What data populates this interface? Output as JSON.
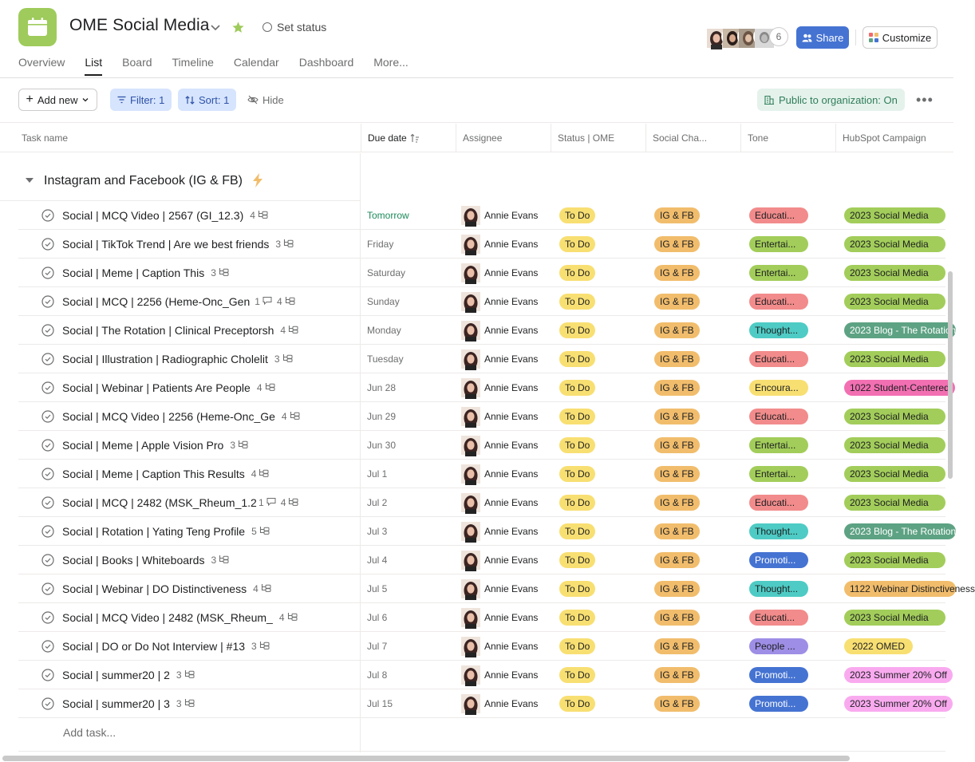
{
  "project": {
    "title": "OME Social Media",
    "set_status": "Set status",
    "accent": "#9ecb5b"
  },
  "tabs": [
    {
      "label": "Overview",
      "active": false
    },
    {
      "label": "List",
      "active": true
    },
    {
      "label": "Board",
      "active": false
    },
    {
      "label": "Timeline",
      "active": false
    },
    {
      "label": "Calendar",
      "active": false
    },
    {
      "label": "Dashboard",
      "active": false
    },
    {
      "label": "More...",
      "active": false
    }
  ],
  "members": {
    "extra_count": "6"
  },
  "header_actions": {
    "share": "Share",
    "customize": "Customize"
  },
  "toolbar": {
    "add_new": "Add new",
    "filter": "Filter: 1",
    "sort": "Sort: 1",
    "hide": "Hide",
    "public": "Public to organization: On"
  },
  "columns": {
    "task_name": "Task name",
    "due_date": "Due date",
    "assignee": "Assignee",
    "status": "Status | OME",
    "social": "Social Cha...",
    "tone": "Tone",
    "hubspot": "HubSpot Campaign"
  },
  "section": {
    "title": "Instagram and Facebook (IG & FB)"
  },
  "tone_colors": {
    "Educati...": "#f28b8b",
    "Entertai...": "#a2cd5a",
    "Thought...": "#4ecbc4",
    "Encoura...": "#f8df72",
    "Promoti...": "#4573d2",
    "People ...": "#9e8ee6"
  },
  "hub_colors": {
    "2023 Social Media": "#a2cd5a",
    "2023 Blog - The Rotation": "#5da283",
    "1022 Student-Centered": "#f26fb2",
    "1122 Webinar Distinctiveness": "#f1bd6c",
    "2022 OMED": "#f8df72",
    "2023 Summer 20% Off": "#f9aaef"
  },
  "tasks": [
    {
      "name": "Social | MCQ Video | 2567 (GI_12.3)",
      "comments": "",
      "subtasks": "4",
      "due": "Tomorrow",
      "assignee": "Annie Evans",
      "status": "To Do",
      "social": "IG & FB",
      "tone": "Educati...",
      "hubspot": "2023 Social Media"
    },
    {
      "name": "Social | TikTok Trend | Are we best friends",
      "comments": "",
      "subtasks": "3",
      "due": "Friday",
      "assignee": "Annie Evans",
      "status": "To Do",
      "social": "IG & FB",
      "tone": "Entertai...",
      "hubspot": "2023 Social Media"
    },
    {
      "name": "Social | Meme | Caption This",
      "comments": "",
      "subtasks": "3",
      "due": "Saturday",
      "assignee": "Annie Evans",
      "status": "To Do",
      "social": "IG & FB",
      "tone": "Entertai...",
      "hubspot": "2023 Social Media"
    },
    {
      "name": "Social | MCQ | 2256 (Heme-Onc_Gen",
      "comments": "1",
      "subtasks": "4",
      "due": "Sunday",
      "assignee": "Annie Evans",
      "status": "To Do",
      "social": "IG & FB",
      "tone": "Educati...",
      "hubspot": "2023 Social Media"
    },
    {
      "name": "Social | The Rotation | Clinical Preceptorsh",
      "comments": "",
      "subtasks": "4",
      "due": "Monday",
      "assignee": "Annie Evans",
      "status": "To Do",
      "social": "IG & FB",
      "tone": "Thought...",
      "hubspot": "2023 Blog - The Rotation"
    },
    {
      "name": "Social | Illustration | Radiographic Cholelit",
      "comments": "",
      "subtasks": "3",
      "due": "Tuesday",
      "assignee": "Annie Evans",
      "status": "To Do",
      "social": "IG & FB",
      "tone": "Educati...",
      "hubspot": "2023 Social Media"
    },
    {
      "name": "Social | Webinar | Patients Are People",
      "comments": "",
      "subtasks": "4",
      "due": "Jun 28",
      "assignee": "Annie Evans",
      "status": "To Do",
      "social": "IG & FB",
      "tone": "Encoura...",
      "hubspot": "1022 Student-Centered"
    },
    {
      "name": "Social | MCQ Video | 2256 (Heme-Onc_Ge",
      "comments": "",
      "subtasks": "4",
      "due": "Jun 29",
      "assignee": "Annie Evans",
      "status": "To Do",
      "social": "IG & FB",
      "tone": "Educati...",
      "hubspot": "2023 Social Media"
    },
    {
      "name": "Social | Meme | Apple Vision Pro",
      "comments": "",
      "subtasks": "3",
      "due": "Jun 30",
      "assignee": "Annie Evans",
      "status": "To Do",
      "social": "IG & FB",
      "tone": "Entertai...",
      "hubspot": "2023 Social Media"
    },
    {
      "name": "Social | Meme | Caption This Results",
      "comments": "",
      "subtasks": "4",
      "due": "Jul 1",
      "assignee": "Annie Evans",
      "status": "To Do",
      "social": "IG & FB",
      "tone": "Entertai...",
      "hubspot": "2023 Social Media"
    },
    {
      "name": "Social | MCQ | 2482 (MSK_Rheum_1.2",
      "comments": "1",
      "subtasks": "4",
      "due": "Jul 2",
      "assignee": "Annie Evans",
      "status": "To Do",
      "social": "IG & FB",
      "tone": "Educati...",
      "hubspot": "2023 Social Media"
    },
    {
      "name": "Social | Rotation | Yating Teng Profile",
      "comments": "",
      "subtasks": "5",
      "due": "Jul 3",
      "assignee": "Annie Evans",
      "status": "To Do",
      "social": "IG & FB",
      "tone": "Thought...",
      "hubspot": "2023 Blog - The Rotation"
    },
    {
      "name": "Social | Books | Whiteboards",
      "comments": "",
      "subtasks": "3",
      "due": "Jul 4",
      "assignee": "Annie Evans",
      "status": "To Do",
      "social": "IG & FB",
      "tone": "Promoti...",
      "hubspot": "2023 Social Media"
    },
    {
      "name": "Social | Webinar | DO Distinctiveness",
      "comments": "",
      "subtasks": "4",
      "due": "Jul 5",
      "assignee": "Annie Evans",
      "status": "To Do",
      "social": "IG & FB",
      "tone": "Thought...",
      "hubspot": "1122 Webinar Distinctiveness"
    },
    {
      "name": "Social | MCQ Video | 2482 (MSK_Rheum_",
      "comments": "",
      "subtasks": "4",
      "due": "Jul 6",
      "assignee": "Annie Evans",
      "status": "To Do",
      "social": "IG & FB",
      "tone": "Educati...",
      "hubspot": "2023 Social Media"
    },
    {
      "name": "Social | DO or Do Not Interview | #13",
      "comments": "",
      "subtasks": "3",
      "due": "Jul 7",
      "assignee": "Annie Evans",
      "status": "To Do",
      "social": "IG & FB",
      "tone": "People ...",
      "hubspot": "2022 OMED"
    },
    {
      "name": "Social | summer20 | 2",
      "comments": "",
      "subtasks": "3",
      "due": "Jul 8",
      "assignee": "Annie Evans",
      "status": "To Do",
      "social": "IG & FB",
      "tone": "Promoti...",
      "hubspot": "2023 Summer 20% Off"
    },
    {
      "name": "Social | summer20 | 3",
      "comments": "",
      "subtasks": "3",
      "due": "Jul 15",
      "assignee": "Annie Evans",
      "status": "To Do",
      "social": "IG & FB",
      "tone": "Promoti...",
      "hubspot": "2023 Summer 20% Off"
    }
  ],
  "add_task": "Add task..."
}
